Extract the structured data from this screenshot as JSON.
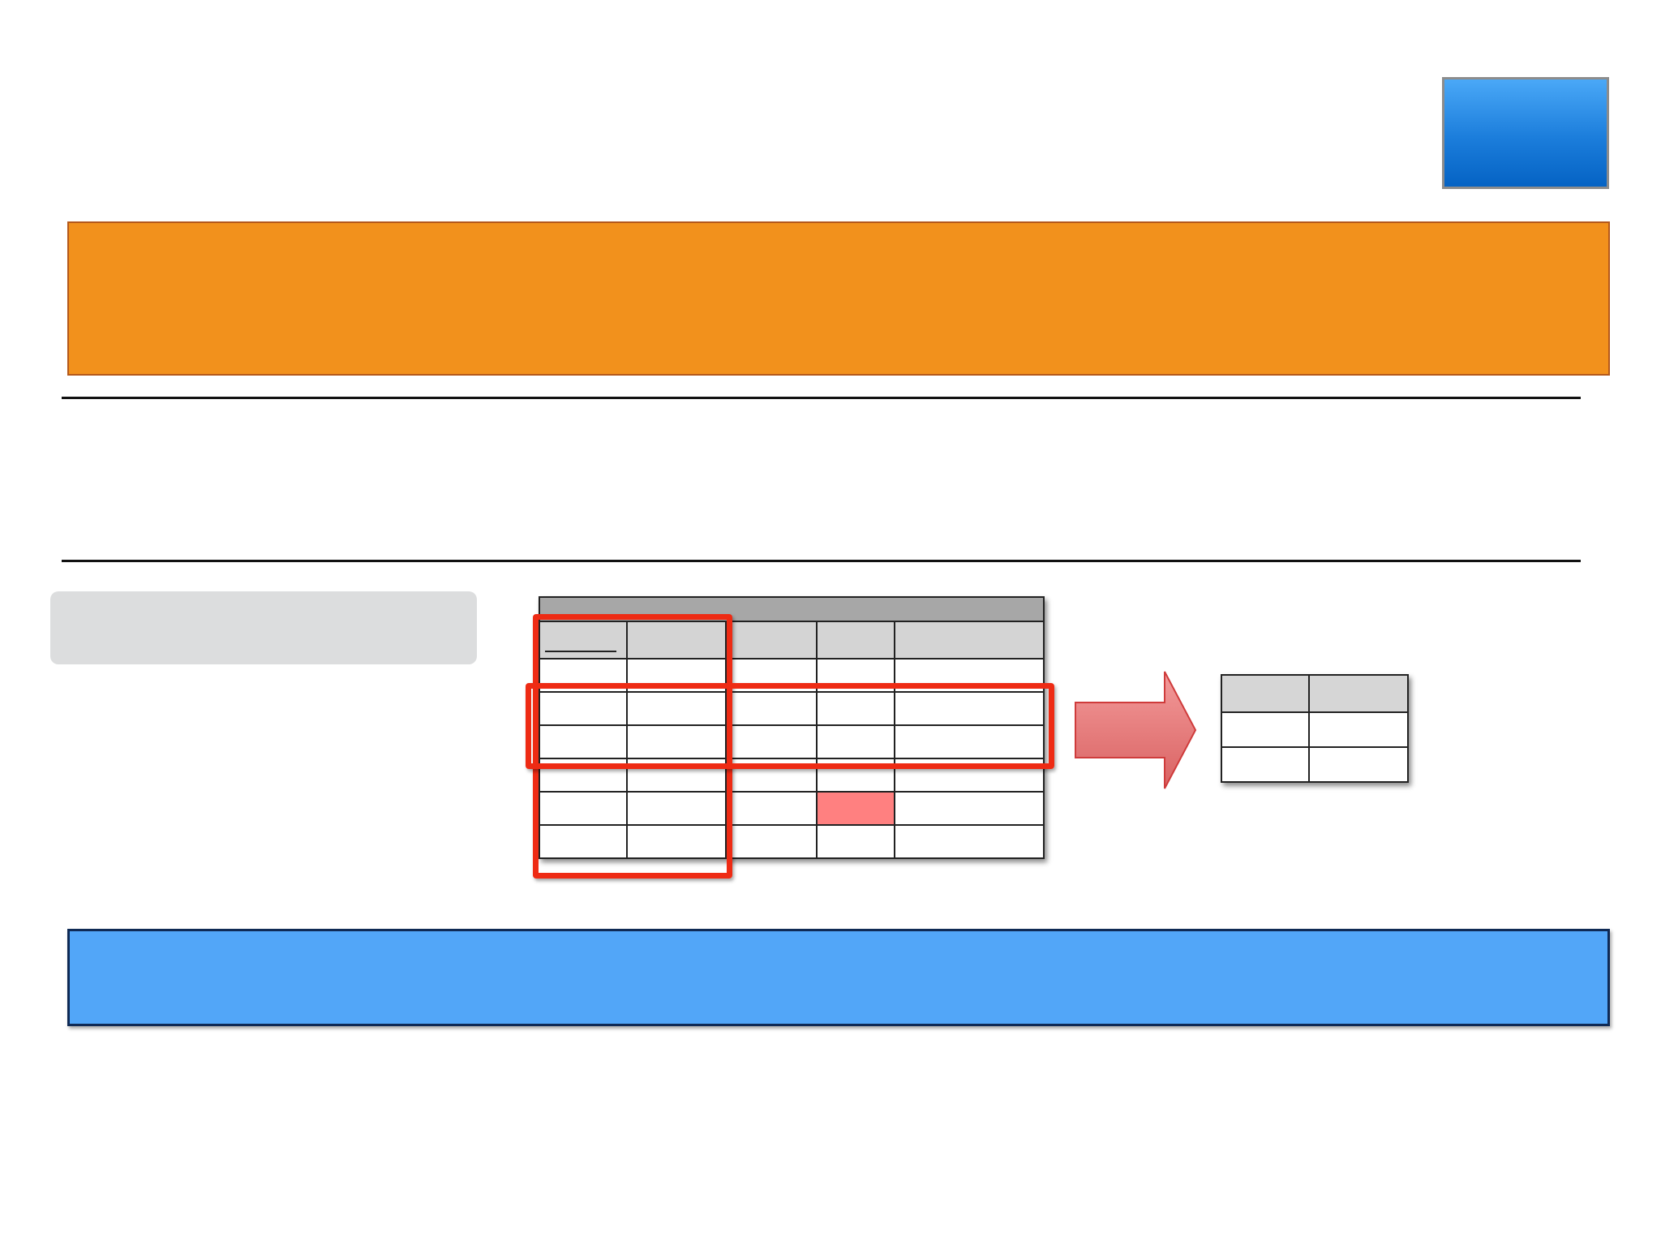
{
  "badge": {
    "label": ""
  },
  "banner": {
    "title": ""
  },
  "grey_box": {
    "label": ""
  },
  "main_table": {
    "title": "",
    "headers": [
      "",
      "",
      "",
      "",
      ""
    ],
    "rows": [
      [
        "",
        "",
        "",
        "",
        ""
      ],
      [
        "",
        "",
        "",
        "",
        ""
      ],
      [
        "",
        "",
        "",
        "",
        ""
      ],
      [
        "",
        "",
        "",
        "",
        ""
      ],
      [
        "",
        "",
        "",
        "",
        ""
      ],
      [
        "",
        "",
        "",
        "",
        ""
      ]
    ],
    "highlight_color": "#ff8080"
  },
  "result_table": {
    "headers": [
      "",
      ""
    ],
    "rows": [
      [
        "",
        ""
      ],
      [
        "",
        ""
      ]
    ]
  },
  "footer_banner": {
    "text": ""
  },
  "colors": {
    "banner": "#f2911c",
    "selection": "#ee2b14",
    "arrow": "#e47b7b",
    "footer": "#52a6f8",
    "badge": "#1b7ddb"
  }
}
